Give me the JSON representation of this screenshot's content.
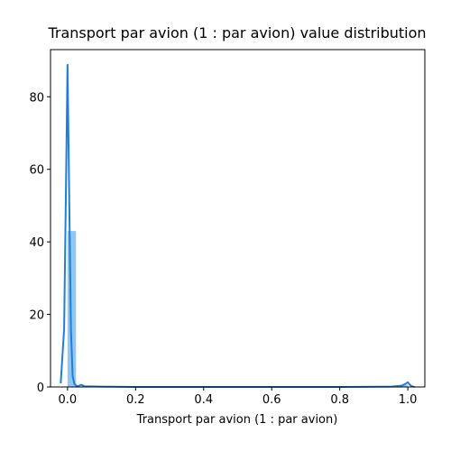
{
  "chart_data": {
    "type": "histogram",
    "title": "Transport par avion (1 : par avion) value distribution",
    "xlabel": "Transport par avion (1 : par avion)",
    "ylabel": "",
    "xlim": [
      -0.05,
      1.05
    ],
    "ylim": [
      0,
      93
    ],
    "xticks": [
      0.0,
      0.2,
      0.4,
      0.6,
      0.8,
      1.0
    ],
    "xtick_labels": [
      "0.0",
      "0.2",
      "0.4",
      "0.6",
      "0.8",
      "1.0"
    ],
    "yticks": [
      0,
      20,
      40,
      60,
      80
    ],
    "ytick_labels": [
      "0",
      "20",
      "40",
      "60",
      "80"
    ],
    "grid": false,
    "bars": [
      {
        "x0": 0.0,
        "x1": 0.025,
        "height": 43.0
      },
      {
        "x0": 0.975,
        "x1": 1.0,
        "height": 0.6
      }
    ],
    "kde": {
      "x": [
        -0.02,
        -0.01,
        -0.005,
        0.0,
        0.005,
        0.01,
        0.015,
        0.02,
        0.025,
        0.03,
        0.04,
        0.05,
        0.1,
        0.2,
        0.4,
        0.6,
        0.8,
        0.95,
        0.98,
        0.99,
        1.0,
        1.005,
        1.01,
        1.015,
        1.02
      ],
      "y": [
        1.0,
        16.0,
        52.0,
        89.0,
        52.0,
        16.0,
        3.0,
        0.9,
        0.4,
        0.2,
        0.6,
        0.2,
        0.1,
        0.0,
        0.0,
        0.0,
        0.0,
        0.1,
        0.3,
        0.7,
        1.3,
        0.7,
        0.3,
        0.1,
        0.0
      ]
    },
    "colors": {
      "bar": "#92c6f5",
      "line": "#1f7fd8"
    }
  }
}
